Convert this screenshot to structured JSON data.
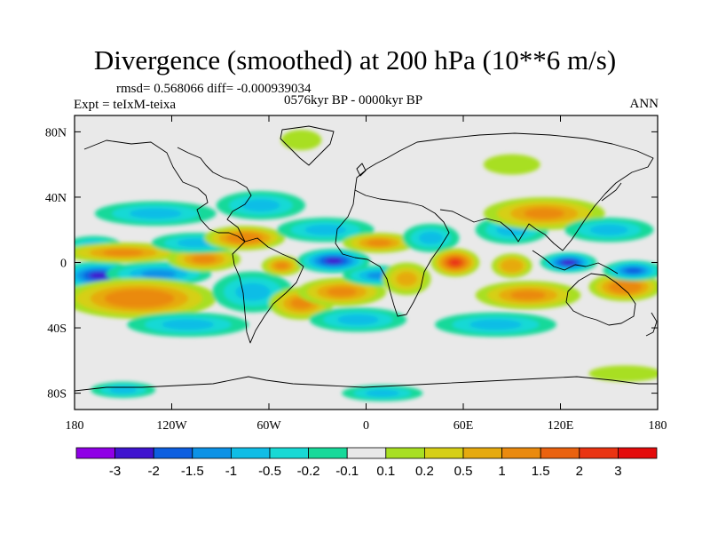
{
  "chart_data": {
    "type": "heatmap",
    "title": "Divergence (smoothed) at 200 hPa (10**6 m/s)",
    "stats": "rmsd= 0.568066 diff= -0.000939034",
    "experiment": "Expt = teIxM-teixa",
    "period": "0576kyr BP - 0000kyr BP",
    "season": "ANN",
    "xlim": [
      -180,
      180
    ],
    "ylim": [
      -90,
      90
    ],
    "x_ticks": [
      {
        "value": -180,
        "label": "180"
      },
      {
        "value": -120,
        "label": "120W"
      },
      {
        "value": -60,
        "label": "60W"
      },
      {
        "value": 0,
        "label": "0"
      },
      {
        "value": 60,
        "label": "60E"
      },
      {
        "value": 120,
        "label": "120E"
      },
      {
        "value": 180,
        "label": "180"
      }
    ],
    "y_ticks": [
      {
        "value": 80,
        "label": "80N"
      },
      {
        "value": 40,
        "label": "40N"
      },
      {
        "value": 0,
        "label": "0"
      },
      {
        "value": -40,
        "label": "40S"
      },
      {
        "value": -80,
        "label": "80S"
      }
    ],
    "colorbar": {
      "colors": [
        "#8f00e6",
        "#3f14cf",
        "#0d5fe0",
        "#0c92e6",
        "#10bde6",
        "#18d9d5",
        "#18d99a",
        "#e9e9e9",
        "#a8df23",
        "#d6cf16",
        "#e6aa0e",
        "#ea8a0e",
        "#ea620f",
        "#ea3412",
        "#e40b0b"
      ],
      "labels": [
        "-3",
        "-2",
        "-1.5",
        "-1",
        "-0.5",
        "-0.2",
        "-0.1",
        "0.1",
        "0.2",
        "0.5",
        "1",
        "1.5",
        "2",
        "3"
      ]
    },
    "features": [
      {
        "lon": -165,
        "lat": -8,
        "rx": 20,
        "ry": 7,
        "value": -2.2
      },
      {
        "lon": -168,
        "lat": 10,
        "rx": 14,
        "ry": 5,
        "value": -0.6
      },
      {
        "lon": -128,
        "lat": -7,
        "rx": 26,
        "ry": 6,
        "value": -1.1
      },
      {
        "lon": -150,
        "lat": 6,
        "rx": 30,
        "ry": 5,
        "value": 1.2
      },
      {
        "lon": -140,
        "lat": -22,
        "rx": 38,
        "ry": 10,
        "value": 1.3
      },
      {
        "lon": -100,
        "lat": 2,
        "rx": 18,
        "ry": 6,
        "value": 1.2
      },
      {
        "lon": -105,
        "lat": 12,
        "rx": 22,
        "ry": 5,
        "value": -0.6
      },
      {
        "lon": -130,
        "lat": 30,
        "rx": 30,
        "ry": 6,
        "value": -0.6
      },
      {
        "lon": -75,
        "lat": 15,
        "rx": 20,
        "ry": 6,
        "value": 1.3
      },
      {
        "lon": -65,
        "lat": 35,
        "rx": 22,
        "ry": 7,
        "value": -0.7
      },
      {
        "lon": -70,
        "lat": -18,
        "rx": 20,
        "ry": 10,
        "value": -0.7
      },
      {
        "lon": -52,
        "lat": -2,
        "rx": 10,
        "ry": 5,
        "value": 1.1
      },
      {
        "lon": -110,
        "lat": -38,
        "rx": 30,
        "ry": 6,
        "value": -0.6
      },
      {
        "lon": -40,
        "lat": -25,
        "rx": 16,
        "ry": 8,
        "value": 1.2
      },
      {
        "lon": -20,
        "lat": 1,
        "rx": 18,
        "ry": 6,
        "value": -2.3
      },
      {
        "lon": -15,
        "lat": -18,
        "rx": 22,
        "ry": 7,
        "value": 1.2
      },
      {
        "lon": -25,
        "lat": 20,
        "rx": 24,
        "ry": 6,
        "value": -0.6
      },
      {
        "lon": 8,
        "lat": 12,
        "rx": 18,
        "ry": 5,
        "value": 1.1
      },
      {
        "lon": 8,
        "lat": -8,
        "rx": 18,
        "ry": 5,
        "value": -1.2
      },
      {
        "lon": -5,
        "lat": -35,
        "rx": 24,
        "ry": 6,
        "value": -0.7
      },
      {
        "lon": 25,
        "lat": -10,
        "rx": 12,
        "ry": 8,
        "value": 0.7
      },
      {
        "lon": 40,
        "lat": 15,
        "rx": 14,
        "ry": 7,
        "value": -0.6
      },
      {
        "lon": 55,
        "lat": 0,
        "rx": 12,
        "ry": 7,
        "value": 2.2
      },
      {
        "lon": 90,
        "lat": 20,
        "rx": 18,
        "ry": 7,
        "value": -0.7
      },
      {
        "lon": 90,
        "lat": -2,
        "rx": 10,
        "ry": 6,
        "value": 1.0
      },
      {
        "lon": 125,
        "lat": 0,
        "rx": 14,
        "ry": 5,
        "value": -2.4
      },
      {
        "lon": 110,
        "lat": 30,
        "rx": 30,
        "ry": 8,
        "value": 1.2
      },
      {
        "lon": 100,
        "lat": -20,
        "rx": 26,
        "ry": 7,
        "value": 1.1
      },
      {
        "lon": 160,
        "lat": -15,
        "rx": 18,
        "ry": 7,
        "value": 1.5
      },
      {
        "lon": 165,
        "lat": -5,
        "rx": 15,
        "ry": 5,
        "value": -1.5
      },
      {
        "lon": 150,
        "lat": 20,
        "rx": 22,
        "ry": 6,
        "value": -0.6
      },
      {
        "lon": 80,
        "lat": -38,
        "rx": 30,
        "ry": 6,
        "value": -0.6
      },
      {
        "lon": -150,
        "lat": -78,
        "rx": 16,
        "ry": 4,
        "value": -0.5
      },
      {
        "lon": 10,
        "lat": -80,
        "rx": 20,
        "ry": 4,
        "value": -0.5
      },
      {
        "lon": 160,
        "lat": -68,
        "rx": 18,
        "ry": 4,
        "value": 0.2
      },
      {
        "lon": -40,
        "lat": 75,
        "rx": 10,
        "ry": 5,
        "value": 0.2
      },
      {
        "lon": 90,
        "lat": 60,
        "rx": 14,
        "ry": 5,
        "value": 0.2
      }
    ]
  }
}
